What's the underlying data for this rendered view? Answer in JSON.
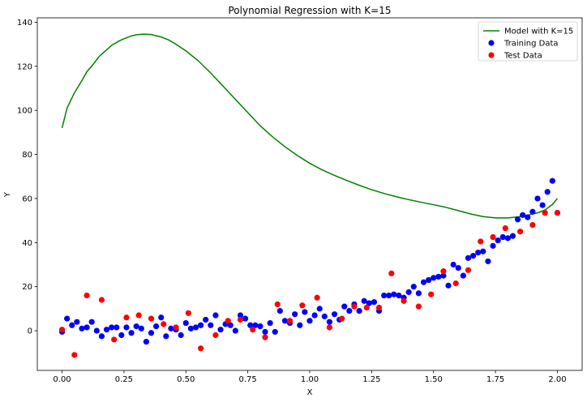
{
  "chart_data": {
    "type": "scatter",
    "title": "Polynomial Regression with K=15",
    "xlabel": "X",
    "ylabel": "Y",
    "xlim": [
      -0.1,
      2.1
    ],
    "ylim": [
      -18,
      142
    ],
    "xticks": [
      0.0,
      0.25,
      0.5,
      0.75,
      1.0,
      1.25,
      1.5,
      1.75,
      2.0
    ],
    "xtick_labels": [
      "0.00",
      "0.25",
      "0.50",
      "0.75",
      "1.00",
      "1.25",
      "1.50",
      "1.75",
      "2.00"
    ],
    "yticks": [
      0,
      20,
      40,
      60,
      80,
      100,
      120,
      140
    ],
    "ytick_labels": [
      "0",
      "20",
      "40",
      "60",
      "80",
      "100",
      "120",
      "140"
    ],
    "grid": false,
    "legend_position": "top-right",
    "series": [
      {
        "name": "Model with K=15",
        "kind": "line",
        "color": "#008000",
        "x": [
          0.0,
          0.02,
          0.05,
          0.08,
          0.1,
          0.13,
          0.15,
          0.18,
          0.2,
          0.23,
          0.25,
          0.28,
          0.3,
          0.33,
          0.36,
          0.4,
          0.43,
          0.46,
          0.5,
          0.55,
          0.6,
          0.65,
          0.7,
          0.75,
          0.8,
          0.85,
          0.9,
          0.95,
          1.0,
          1.05,
          1.1,
          1.15,
          1.2,
          1.25,
          1.3,
          1.35,
          1.4,
          1.45,
          1.5,
          1.55,
          1.6,
          1.65,
          1.7,
          1.75,
          1.8,
          1.85,
          1.88,
          1.92,
          1.95,
          1.98,
          2.0
        ],
        "y": [
          92,
          101,
          108,
          113.5,
          117.5,
          121.5,
          124.5,
          127.5,
          129.5,
          131.5,
          132.5,
          133.8,
          134.3,
          134.6,
          134.4,
          133.3,
          132,
          130,
          127,
          122.5,
          117,
          111,
          105,
          99,
          93,
          88,
          83.5,
          79.5,
          76,
          73,
          70.5,
          68.2,
          66,
          64,
          62.3,
          60.8,
          59.5,
          58.3,
          57.2,
          56,
          54.5,
          53,
          51.8,
          51.2,
          51.2,
          51.8,
          52.5,
          53.5,
          54.8,
          57.3,
          60
        ]
      },
      {
        "name": "Training Data",
        "kind": "scatter",
        "color": "#0000ff",
        "x": [
          0.0,
          0.02,
          0.04,
          0.06,
          0.08,
          0.1,
          0.12,
          0.14,
          0.16,
          0.18,
          0.2,
          0.22,
          0.24,
          0.26,
          0.28,
          0.3,
          0.32,
          0.34,
          0.36,
          0.38,
          0.4,
          0.42,
          0.44,
          0.46,
          0.48,
          0.5,
          0.52,
          0.54,
          0.56,
          0.58,
          0.6,
          0.62,
          0.64,
          0.66,
          0.68,
          0.7,
          0.72,
          0.74,
          0.76,
          0.78,
          0.8,
          0.82,
          0.84,
          0.86,
          0.88,
          0.9,
          0.92,
          0.94,
          0.96,
          0.98,
          1.0,
          1.02,
          1.04,
          1.06,
          1.08,
          1.1,
          1.12,
          1.14,
          1.16,
          1.18,
          1.2,
          1.22,
          1.24,
          1.26,
          1.28,
          1.3,
          1.32,
          1.34,
          1.36,
          1.38,
          1.4,
          1.42,
          1.44,
          1.46,
          1.48,
          1.5,
          1.52,
          1.54,
          1.56,
          1.58,
          1.6,
          1.62,
          1.64,
          1.66,
          1.68,
          1.7,
          1.72,
          1.74,
          1.76,
          1.78,
          1.8,
          1.82,
          1.84,
          1.86,
          1.88,
          1.9,
          1.92,
          1.94,
          1.96,
          1.98,
          2.0
        ],
        "y": [
          -0.5,
          5.5,
          2.5,
          4,
          1,
          1.5,
          4,
          0,
          -2.5,
          0.5,
          1.5,
          1.5,
          -2,
          1.5,
          -1,
          2,
          1,
          -5,
          -1,
          2,
          6,
          -2.5,
          1,
          0.5,
          -2,
          3.5,
          1,
          1.5,
          2.5,
          5,
          2.5,
          7,
          0.5,
          3,
          2.5,
          0,
          7,
          5.5,
          2.5,
          2.5,
          2,
          -0.5,
          3.5,
          -0.5,
          9,
          4.5,
          3.5,
          7.5,
          2.5,
          8.5,
          4.5,
          7,
          10,
          6.5,
          4,
          7.5,
          5,
          11,
          9,
          12,
          9,
          13.5,
          12.5,
          13,
          9,
          16,
          16,
          16.5,
          16,
          15,
          17.5,
          20,
          17,
          22,
          23,
          24,
          24.5,
          25,
          20.5,
          30,
          28.5,
          25,
          33,
          34,
          35.5,
          36,
          31.5,
          38.5,
          41,
          42.5,
          42,
          43,
          50.5,
          52.5,
          51.5,
          54,
          60,
          57,
          63,
          68,
          53.5
        ]
      },
      {
        "name": "Test Data",
        "kind": "scatter",
        "color": "#ff0000",
        "x": [
          0.0,
          0.05,
          0.1,
          0.16,
          0.21,
          0.26,
          0.31,
          0.36,
          0.41,
          0.46,
          0.51,
          0.56,
          0.62,
          0.67,
          0.72,
          0.77,
          0.82,
          0.87,
          0.92,
          0.97,
          1.03,
          1.08,
          1.13,
          1.18,
          1.23,
          1.28,
          1.33,
          1.38,
          1.44,
          1.49,
          1.54,
          1.59,
          1.64,
          1.69,
          1.74,
          1.79,
          1.85,
          1.9,
          1.95,
          2.0
        ],
        "y": [
          0.5,
          -11,
          16,
          14,
          -4,
          6,
          7,
          5.5,
          3,
          1.5,
          8,
          -8,
          -2,
          4.5,
          5,
          0.5,
          -3,
          12,
          4.5,
          11.5,
          15,
          1.5,
          5.5,
          11,
          10.5,
          10.5,
          26,
          13.5,
          11,
          16.5,
          27,
          21.5,
          27.5,
          40.5,
          42.5,
          46.5,
          45,
          48,
          53.5,
          53.5
        ]
      }
    ]
  }
}
